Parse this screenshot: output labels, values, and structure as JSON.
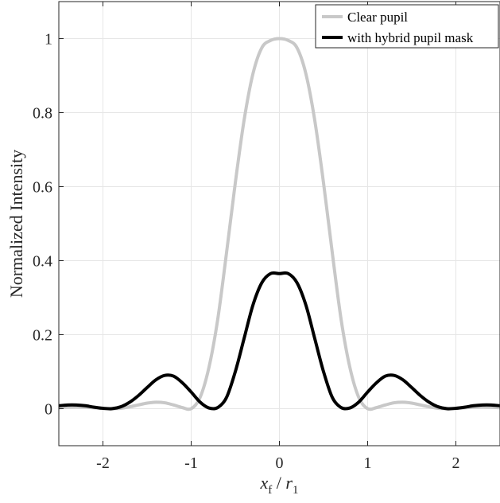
{
  "chart_data": {
    "type": "line",
    "title": "",
    "xlabel": "x_f / r_1",
    "xlabel_parts": {
      "main": "x",
      "sub1": "f",
      "sep": " / ",
      "main2": "r",
      "sub2": "1"
    },
    "ylabel": "Normalized Intensity",
    "xlim": [
      -2.5,
      2.5
    ],
    "ylim": [
      -0.1,
      1.1
    ],
    "xticks": [
      -2,
      -1,
      0,
      1,
      2
    ],
    "xtick_labels": [
      "-2",
      "-1",
      "0",
      "1",
      "2"
    ],
    "yticks": [
      0,
      0.2,
      0.4,
      0.6,
      0.8,
      1
    ],
    "ytick_labels": [
      "0",
      "0.2",
      "0.4",
      "0.6",
      "0.8",
      "1"
    ],
    "grid": true,
    "legend_position": "top-right",
    "series": [
      {
        "name": "Clear pupil",
        "color": "#c8c8c8",
        "x": [
          -2.5,
          -2.4,
          -2.3,
          -2.2,
          -2.1,
          -2.0,
          -1.9,
          -1.8,
          -1.7,
          -1.6,
          -1.5,
          -1.4,
          -1.3,
          -1.2,
          -1.1,
          -1.0,
          -0.9,
          -0.8,
          -0.7,
          -0.6,
          -0.5,
          -0.4,
          -0.3,
          -0.2,
          -0.1,
          0.0,
          0.1,
          0.2,
          0.3,
          0.4,
          0.5,
          0.6,
          0.7,
          0.8,
          0.9,
          1.0,
          1.1,
          1.2,
          1.3,
          1.4,
          1.5,
          1.6,
          1.7,
          1.8,
          1.9,
          2.0,
          2.1,
          2.2,
          2.3,
          2.4,
          2.5
        ],
        "y": [
          0.0025,
          0.004,
          0.0045,
          0.004,
          0.0025,
          0.001,
          0.0,
          0.001,
          0.005,
          0.01,
          0.015,
          0.0175,
          0.016,
          0.01,
          0.003,
          0.0,
          0.03,
          0.11,
          0.24,
          0.42,
          0.61,
          0.78,
          0.905,
          0.975,
          0.995,
          1.0,
          0.995,
          0.975,
          0.905,
          0.78,
          0.61,
          0.42,
          0.24,
          0.11,
          0.03,
          0.0,
          0.003,
          0.01,
          0.016,
          0.0175,
          0.015,
          0.01,
          0.005,
          0.001,
          0.0,
          0.001,
          0.0025,
          0.004,
          0.0045,
          0.004,
          0.0025
        ]
      },
      {
        "name": "with hybrid pupil mask",
        "color": "#000000",
        "x": [
          -2.5,
          -2.4,
          -2.3,
          -2.2,
          -2.1,
          -2.0,
          -1.9,
          -1.8,
          -1.7,
          -1.6,
          -1.5,
          -1.4,
          -1.3,
          -1.2,
          -1.1,
          -1.0,
          -0.9,
          -0.8,
          -0.7,
          -0.6,
          -0.5,
          -0.4,
          -0.3,
          -0.2,
          -0.1,
          0.0,
          0.1,
          0.2,
          0.3,
          0.4,
          0.5,
          0.6,
          0.7,
          0.8,
          0.9,
          1.0,
          1.1,
          1.2,
          1.3,
          1.4,
          1.5,
          1.6,
          1.7,
          1.8,
          1.9,
          2.0,
          2.1,
          2.2,
          2.3,
          2.4,
          2.5
        ],
        "y": [
          0.008,
          0.01,
          0.01,
          0.008,
          0.004,
          0.001,
          0.0,
          0.005,
          0.017,
          0.035,
          0.057,
          0.078,
          0.09,
          0.088,
          0.07,
          0.045,
          0.018,
          0.002,
          0.003,
          0.03,
          0.1,
          0.19,
          0.28,
          0.34,
          0.365,
          0.365,
          0.365,
          0.34,
          0.28,
          0.19,
          0.1,
          0.03,
          0.003,
          0.002,
          0.018,
          0.045,
          0.07,
          0.088,
          0.09,
          0.078,
          0.057,
          0.035,
          0.017,
          0.005,
          0.0,
          0.001,
          0.004,
          0.008,
          0.01,
          0.01,
          0.008
        ]
      }
    ]
  }
}
